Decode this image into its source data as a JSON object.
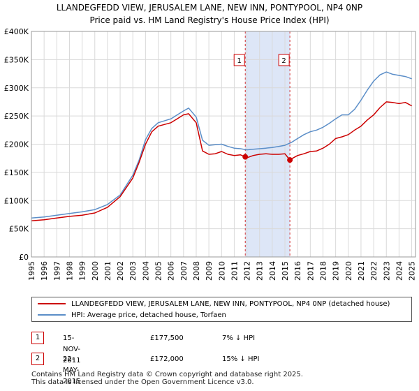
{
  "header": {
    "title_line1": "LLANDEGFEDD VIEW, JERUSALEM LANE, NEW INN, PONTYPOOL, NP4 0NP",
    "title_line2": "Price paid vs. HM Land Registry's House Price Index (HPI)"
  },
  "chart_data": {
    "type": "line",
    "title": "LLANDEGFEDD VIEW, JERUSALEM LANE, NEW INN, PONTYPOOL, NP4 0NP",
    "subtitle": "Price paid vs. HM Land Registry's House Price Index (HPI)",
    "xlabel": "",
    "ylabel": "",
    "xlim": [
      1995,
      2025.3
    ],
    "ylim": [
      0,
      400000
    ],
    "grid": true,
    "x_ticks": [
      "1995",
      "1996",
      "1997",
      "1998",
      "1999",
      "2000",
      "2001",
      "2002",
      "2003",
      "2004",
      "2005",
      "2006",
      "2007",
      "2008",
      "2009",
      "2010",
      "2011",
      "2012",
      "2013",
      "2014",
      "2015",
      "2016",
      "2017",
      "2018",
      "2019",
      "2020",
      "2021",
      "2022",
      "2023",
      "2024",
      "2025"
    ],
    "y_ticks": [
      {
        "value": 0,
        "label": "£0"
      },
      {
        "value": 50000,
        "label": "£50K"
      },
      {
        "value": 100000,
        "label": "£100K"
      },
      {
        "value": 150000,
        "label": "£150K"
      },
      {
        "value": 200000,
        "label": "£200K"
      },
      {
        "value": 250000,
        "label": "£250K"
      },
      {
        "value": 300000,
        "label": "£300K"
      },
      {
        "value": 350000,
        "label": "£350K"
      },
      {
        "value": 400000,
        "label": "£400K"
      }
    ],
    "shaded_period": {
      "from": 2011.87,
      "to": 2015.39
    },
    "series": [
      {
        "name": "LLANDEGFEDD VIEW, JERUSALEM LANE, NEW INN, PONTYPOOL, NP4 0NP (detached house)",
        "color": "#cc0000",
        "x": [
          1995,
          1996,
          1997,
          1998,
          1999,
          2000,
          2001,
          2002,
          2003,
          2003.5,
          2004,
          2004.5,
          2005,
          2006,
          2007,
          2007.4,
          2008,
          2008.5,
          2009,
          2009.5,
          2010,
          2010.5,
          2011,
          2011.5,
          2011.87,
          2012,
          2012.5,
          2013,
          2013.5,
          2014,
          2014.5,
          2015,
          2015.39,
          2015.6,
          2016,
          2016.5,
          2017,
          2017.5,
          2018,
          2018.5,
          2019,
          2019.5,
          2020,
          2020.5,
          2021,
          2021.5,
          2022,
          2022.5,
          2023,
          2023.5,
          2024,
          2024.5,
          2025
        ],
        "values": [
          64000,
          66000,
          69000,
          72000,
          74000,
          78000,
          88000,
          107000,
          140000,
          168000,
          200000,
          222000,
          232000,
          238000,
          252000,
          254000,
          238000,
          188000,
          182000,
          183000,
          187000,
          182000,
          180000,
          181000,
          177500,
          176000,
          180000,
          182000,
          183000,
          182000,
          182000,
          183000,
          172000,
          175000,
          180000,
          183000,
          187000,
          188000,
          193000,
          200000,
          210000,
          213000,
          217000,
          225000,
          232000,
          243000,
          252000,
          265000,
          275000,
          274000,
          272000,
          274000,
          268000
        ]
      },
      {
        "name": "HPI: Average price, detached house, Torfaen",
        "color": "#5b8ec8",
        "x": [
          1995,
          1996,
          1997,
          1998,
          1999,
          2000,
          2001,
          2002,
          2003,
          2003.5,
          2004,
          2004.5,
          2005,
          2006,
          2007,
          2007.4,
          2008,
          2008.5,
          2009,
          2009.5,
          2010,
          2010.5,
          2011,
          2011.5,
          2012,
          2012.5,
          2013,
          2013.5,
          2014,
          2014.5,
          2015,
          2015.5,
          2016,
          2016.5,
          2017,
          2017.5,
          2018,
          2018.5,
          2019,
          2019.5,
          2020,
          2020.5,
          2021,
          2021.5,
          2022,
          2022.5,
          2023,
          2023.5,
          2024,
          2024.5,
          2025
        ],
        "values": [
          69000,
          71000,
          74000,
          77000,
          80000,
          84000,
          93000,
          110000,
          145000,
          172000,
          208000,
          228000,
          238000,
          245000,
          259000,
          264000,
          248000,
          207000,
          198000,
          199000,
          200000,
          196000,
          193000,
          192000,
          190000,
          191000,
          192000,
          193000,
          194000,
          196000,
          198000,
          203000,
          210000,
          217000,
          222000,
          225000,
          230000,
          237000,
          245000,
          252000,
          252000,
          262000,
          278000,
          296000,
          312000,
          323000,
          328000,
          324000,
          322000,
          320000,
          316000
        ]
      }
    ],
    "sales": [
      {
        "label": "1",
        "x": 2011.87,
        "value": 177500
      },
      {
        "label": "2",
        "x": 2015.39,
        "value": 172000
      }
    ]
  },
  "legend": {
    "property_label": "LLANDEGFEDD VIEW, JERUSALEM LANE, NEW INN, PONTYPOOL, NP4 0NP (detached house)",
    "hpi_label": "HPI: Average price, detached house, Torfaen",
    "property_color": "#cc0000",
    "hpi_color": "#5b8ec8"
  },
  "sales_table": [
    {
      "num": "1",
      "date": "15-NOV-2011",
      "price": "£177,500",
      "hpi": "7% ↓ HPI"
    },
    {
      "num": "2",
      "date": "22-MAY-2015",
      "price": "£172,000",
      "hpi": "15% ↓ HPI"
    }
  ],
  "footer": {
    "line1": "Contains HM Land Registry data © Crown copyright and database right 2025.",
    "line2": "This data is licensed under the Open Government Licence v3.0."
  }
}
